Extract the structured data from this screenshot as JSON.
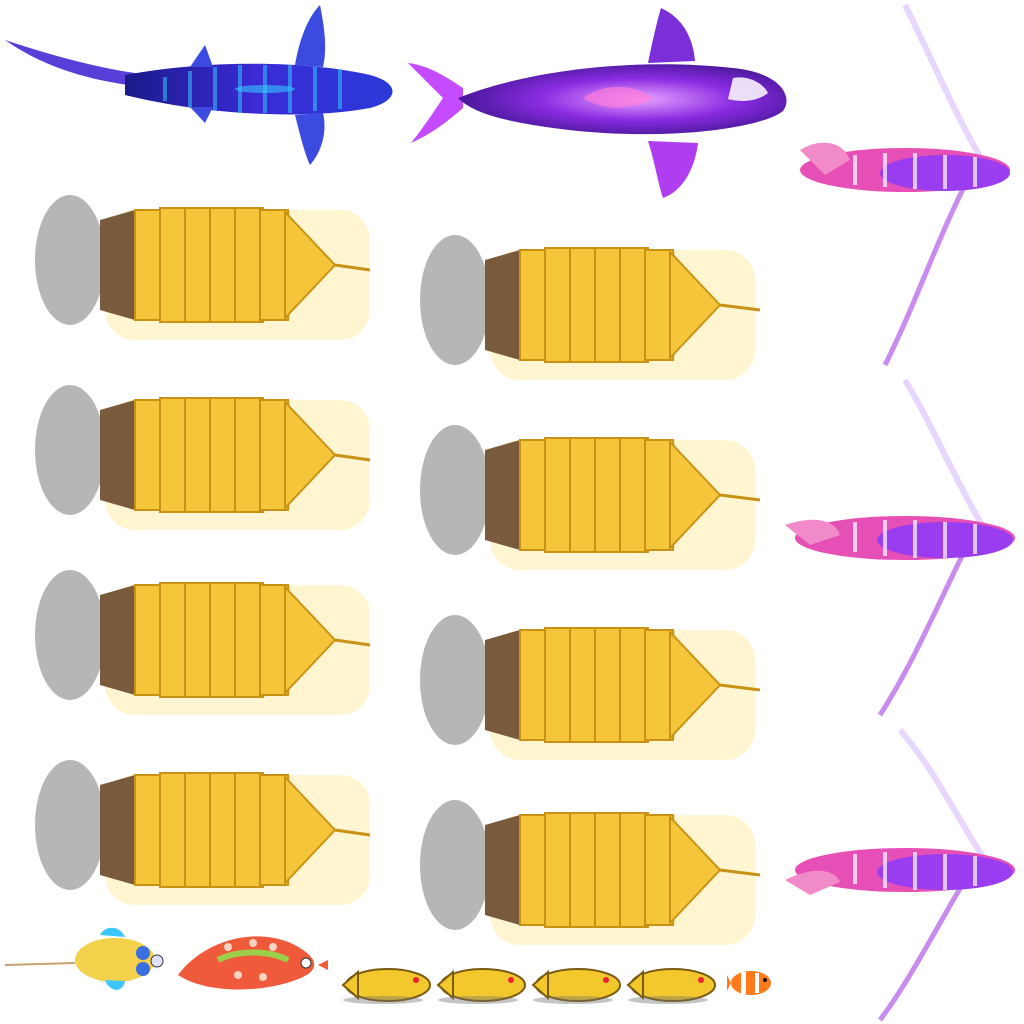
{
  "sheet": {
    "background": "#ffffff",
    "colors": {
      "shark_blue": "#3a2bd6",
      "shark_cyan": "#33c8ff",
      "orca_purple": "#6a22e0",
      "orca_magenta": "#d84bff",
      "lionfish_pink": "#e64fb6",
      "lionfish_violet": "#9a3df0",
      "pagoda_gold": "#f6c63a",
      "pagoda_glow": "#ffe27a",
      "pagoda_base": "#7a5a3c",
      "shadow": "#6e6e6e"
    },
    "sprites": {
      "large": [
        "whale-shark",
        "orca",
        "lionfish"
      ],
      "pagoda_frames": 8,
      "lionfish_frames": 3,
      "small": [
        "seahorse-fish",
        "red-spotted-fish",
        "squid",
        "squid",
        "squid",
        "squid",
        "clownfish"
      ]
    }
  }
}
